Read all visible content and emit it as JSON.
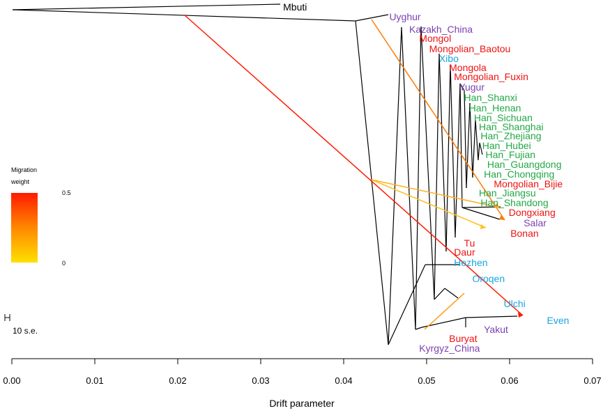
{
  "chart_data": {
    "type": "tree",
    "xlabel": "Drift parameter",
    "xlim": [
      0.0,
      0.07
    ],
    "x_ticks": [
      "0.00",
      "0.01",
      "0.02",
      "0.03",
      "0.04",
      "0.05",
      "0.06",
      "0.07"
    ],
    "x_tick_values": [
      0.0,
      0.01,
      0.02,
      0.03,
      0.04,
      0.05,
      0.06,
      0.07
    ],
    "legend": {
      "title_line1": "Migration",
      "title_line2": "weight",
      "max_label": "0.5",
      "min_label": "0",
      "scale_label": "10 s.e."
    },
    "colors": {
      "East Asian (Han)": "#22a845",
      "Mongolic": "#ee1111",
      "Turkic": "#7b3fb0",
      "Tungusic": "#1aa3e0",
      "Outgroup": "#000000",
      "migration_high": "#ff1a00",
      "migration_mid": "#ff8800",
      "migration_low": "#ffe000"
    },
    "populations": [
      {
        "name": "Mbuti",
        "group": "Outgroup",
        "drift": 0.0327
      },
      {
        "name": "Uyghur",
        "group": "Turkic",
        "drift": 0.0455
      },
      {
        "name": "Kazakh_China",
        "group": "Turkic",
        "drift": 0.0479
      },
      {
        "name": "Mongol",
        "group": "Mongolic",
        "drift": 0.0491
      },
      {
        "name": "Mongolian_Baotou",
        "group": "Mongolic",
        "drift": 0.0503
      },
      {
        "name": "Xibo",
        "group": "Tungusic",
        "drift": 0.0515
      },
      {
        "name": "Mongola",
        "group": "Mongolic",
        "drift": 0.0527
      },
      {
        "name": "Mongolian_Fuxin",
        "group": "Mongolic",
        "drift": 0.0533
      },
      {
        "name": "Yugur",
        "group": "Turkic",
        "drift": 0.0539
      },
      {
        "name": "Han_Shanxi",
        "group": "East Asian (Han)",
        "drift": 0.0545
      },
      {
        "name": "Han_Henan",
        "group": "East Asian (Han)",
        "drift": 0.0551
      },
      {
        "name": "Han_Sichuan",
        "group": "East Asian (Han)",
        "drift": 0.0557
      },
      {
        "name": "Han_Shanghai",
        "group": "East Asian (Han)",
        "drift": 0.0563
      },
      {
        "name": "Han_Zhejiang",
        "group": "East Asian (Han)",
        "drift": 0.0565
      },
      {
        "name": "Han_Hubei",
        "group": "East Asian (Han)",
        "drift": 0.0567
      },
      {
        "name": "Han_Fujian",
        "group": "East Asian (Han)",
        "drift": 0.0571
      },
      {
        "name": "Han_Guangdong",
        "group": "East Asian (Han)",
        "drift": 0.0573
      },
      {
        "name": "Han_Chongqing",
        "group": "East Asian (Han)",
        "drift": 0.0569
      },
      {
        "name": "Mongolian_Bijie",
        "group": "Mongolic",
        "drift": 0.0581
      },
      {
        "name": "Han_Jiangsu",
        "group": "East Asian (Han)",
        "drift": 0.0563
      },
      {
        "name": "Han_Shandong",
        "group": "East Asian (Han)",
        "drift": 0.0565
      },
      {
        "name": "Dongxiang",
        "group": "Mongolic",
        "drift": 0.0599
      },
      {
        "name": "Salar",
        "group": "Turkic",
        "drift": 0.0617
      },
      {
        "name": "Bonan",
        "group": "Mongolic",
        "drift": 0.0601
      },
      {
        "name": "Tu",
        "group": "Mongolic",
        "drift": 0.0545
      },
      {
        "name": "Daur",
        "group": "Mongolic",
        "drift": 0.0533
      },
      {
        "name": "Hezhen",
        "group": "Tungusic",
        "drift": 0.0533
      },
      {
        "name": "Oroqen",
        "group": "Tungusic",
        "drift": 0.0555
      },
      {
        "name": "Ulchi",
        "group": "Tungusic",
        "drift": 0.0593
      },
      {
        "name": "Even",
        "group": "Tungusic",
        "drift": 0.0645
      },
      {
        "name": "Yakut",
        "group": "Turkic",
        "drift": 0.0569
      },
      {
        "name": "Buryat",
        "group": "Mongolic",
        "drift": 0.0527
      },
      {
        "name": "Kyrgyz_China",
        "group": "Turkic",
        "drift": 0.0491
      }
    ],
    "migration_edges": [
      {
        "from": "ancestral branch (0.021)",
        "to": "Even",
        "weight": 0.5
      },
      {
        "from": "Uyghur branch (0.0436)",
        "to": "Mongolian_Bijie/Dongxiang branch",
        "weight": 0.35
      },
      {
        "from": "Uyghur/Kazakh branch (0.0436)",
        "to": "Tu/Bonan branch",
        "weight": 0.2
      },
      {
        "from": "Kyrgyz_China",
        "to": "Oroqen/Ulchi branch",
        "weight": 0.22
      }
    ]
  }
}
